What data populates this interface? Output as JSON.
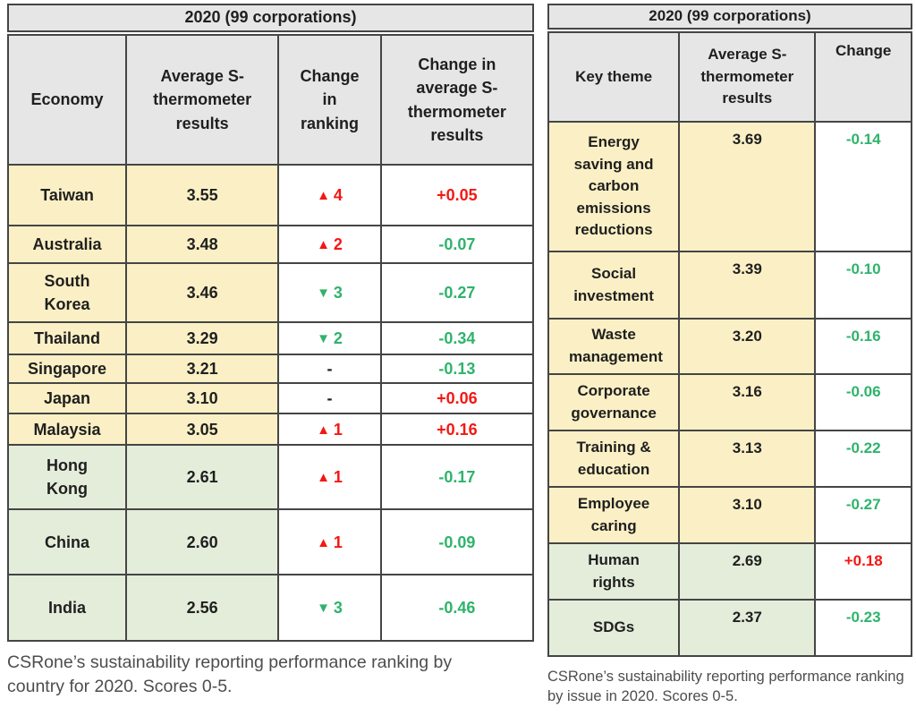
{
  "colors": {
    "red": "#f41713",
    "green": "#2fb36b",
    "yellow_bg": "#fbf0c5",
    "green_bg": "#e4edda",
    "header_bg": "#e6e6e6",
    "border": "#454545"
  },
  "left_table": {
    "title": "2020 (99 corporations)",
    "columns": [
      "Economy",
      "Average S-thermometer results",
      "Change in ranking",
      "Change in average S-thermometer results"
    ],
    "rows": [
      {
        "economy": "Taiwan",
        "avg": "3.55",
        "rank": {
          "dir": "up",
          "value": "4"
        },
        "change": "+0.05",
        "band": "yellow"
      },
      {
        "economy": "Australia",
        "avg": "3.48",
        "rank": {
          "dir": "up",
          "value": "2"
        },
        "change": "-0.07",
        "band": "yellow"
      },
      {
        "economy": "South Korea",
        "avg": "3.46",
        "rank": {
          "dir": "down",
          "value": "3"
        },
        "change": "-0.27",
        "band": "yellow"
      },
      {
        "economy": "Thailand",
        "avg": "3.29",
        "rank": {
          "dir": "down",
          "value": "2"
        },
        "change": "-0.34",
        "band": "yellow"
      },
      {
        "economy": "Singapore",
        "avg": "3.21",
        "rank": {
          "dir": "none",
          "value": "-"
        },
        "change": "-0.13",
        "band": "yellow"
      },
      {
        "economy": "Japan",
        "avg": "3.10",
        "rank": {
          "dir": "none",
          "value": "-"
        },
        "change": "+0.06",
        "band": "yellow"
      },
      {
        "economy": "Malaysia",
        "avg": "3.05",
        "rank": {
          "dir": "up",
          "value": "1"
        },
        "change": "+0.16",
        "band": "yellow"
      },
      {
        "economy": "Hong Kong",
        "avg": "2.61",
        "rank": {
          "dir": "up",
          "value": "1"
        },
        "change": "-0.17",
        "band": "green"
      },
      {
        "economy": "China",
        "avg": "2.60",
        "rank": {
          "dir": "up",
          "value": "1"
        },
        "change": "-0.09",
        "band": "green"
      },
      {
        "economy": "India",
        "avg": "2.56",
        "rank": {
          "dir": "down",
          "value": "3"
        },
        "change": "-0.46",
        "band": "green"
      }
    ],
    "caption": "CSRone’s sustainability reporting performance ranking by country for 2020. Scores 0-5."
  },
  "right_table": {
    "title": "2020 (99 corporations)",
    "columns": [
      "Key theme",
      "Average S-thermometer results",
      "Change"
    ],
    "rows": [
      {
        "theme": "Energy saving and carbon emissions reductions",
        "avg": "3.69",
        "change": "-0.14",
        "band": "yellow"
      },
      {
        "theme": "Social investment",
        "avg": "3.39",
        "change": "-0.10",
        "band": "yellow"
      },
      {
        "theme": "Waste management",
        "avg": "3.20",
        "change": "-0.16",
        "band": "yellow"
      },
      {
        "theme": "Corporate governance",
        "avg": "3.16",
        "change": "-0.06",
        "band": "yellow"
      },
      {
        "theme": "Training & education",
        "avg": "3.13",
        "change": "-0.22",
        "band": "yellow"
      },
      {
        "theme": "Employee caring",
        "avg": "3.10",
        "change": "-0.27",
        "band": "yellow"
      },
      {
        "theme": "Human rights",
        "avg": "2.69",
        "change": "+0.18",
        "band": "green"
      },
      {
        "theme": "SDGs",
        "avg": "2.37",
        "change": "-0.23",
        "band": "green"
      }
    ],
    "caption": "CSRone’s sustainability reporting performance ranking by issue in 2020.  Scores 0-5."
  },
  "chart_data": [
    {
      "type": "table",
      "title": "2020 (99 corporations)",
      "columns": [
        "Economy",
        "Average S-thermometer results",
        "Change in ranking",
        "Change in average S-thermometer results"
      ],
      "rows": [
        [
          "Taiwan",
          3.55,
          "▲4",
          "+0.05"
        ],
        [
          "Australia",
          3.48,
          "▲2",
          "-0.07"
        ],
        [
          "South Korea",
          3.46,
          "▼3",
          "-0.27"
        ],
        [
          "Thailand",
          3.29,
          "▼2",
          "-0.34"
        ],
        [
          "Singapore",
          3.21,
          "-",
          "-0.13"
        ],
        [
          "Japan",
          3.1,
          "-",
          "+0.06"
        ],
        [
          "Malaysia",
          3.05,
          "▲1",
          "+0.16"
        ],
        [
          "Hong Kong",
          2.61,
          "▲1",
          "-0.17"
        ],
        [
          "China",
          2.6,
          "▲1",
          "-0.09"
        ],
        [
          "India",
          2.56,
          "▼3",
          "-0.46"
        ]
      ]
    },
    {
      "type": "table",
      "title": "2020 (99 corporations)",
      "columns": [
        "Key theme",
        "Average S-thermometer results",
        "Change"
      ],
      "rows": [
        [
          "Energy saving and carbon emissions reductions",
          3.69,
          "-0.14"
        ],
        [
          "Social investment",
          3.39,
          "-0.10"
        ],
        [
          "Waste management",
          3.2,
          "-0.16"
        ],
        [
          "Corporate governance",
          3.16,
          "-0.06"
        ],
        [
          "Training & education",
          3.13,
          "-0.22"
        ],
        [
          "Employee caring",
          3.1,
          "-0.27"
        ],
        [
          "Human rights",
          2.69,
          "+0.18"
        ],
        [
          "SDGs",
          2.37,
          "-0.23"
        ]
      ]
    }
  ]
}
